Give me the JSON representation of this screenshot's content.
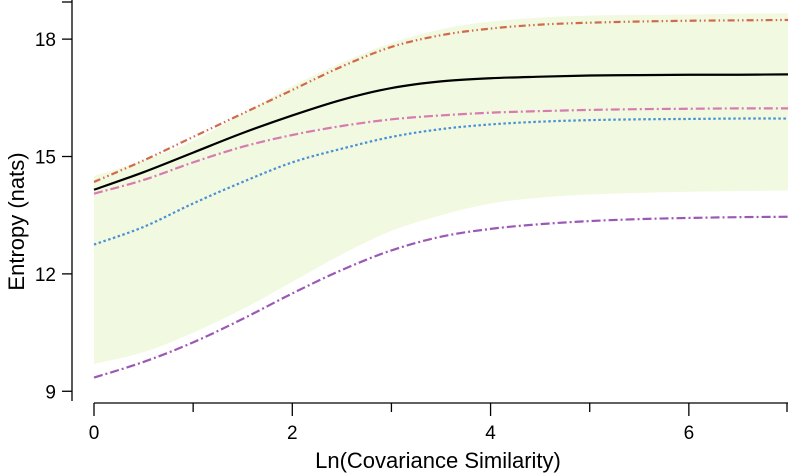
{
  "chart_data": {
    "type": "line",
    "title": "",
    "xlabel": "Ln(Covariance Similarity)",
    "ylabel": "Entropy (nats)",
    "xlim": [
      0,
      7
    ],
    "ylim": [
      8.7,
      19.0
    ],
    "x_ticks": [
      0,
      2,
      4,
      6
    ],
    "x_minor_ticks": [
      1,
      3,
      5,
      7
    ],
    "x_tick_labels": [
      "0",
      "2",
      "4",
      "6"
    ],
    "y_ticks": [
      9,
      12,
      15,
      18
    ],
    "y_tick_labels": [
      "9",
      "12",
      "15",
      "18"
    ],
    "grid": false,
    "legend": "none",
    "band": {
      "name": "shaded-range",
      "color": "#f1f9e0",
      "x": [
        0,
        0.5,
        1,
        1.5,
        2,
        2.5,
        3,
        3.5,
        4,
        4.5,
        5,
        5.5,
        6,
        6.5,
        7
      ],
      "upper": [
        14.5,
        14.9,
        15.4,
        16.1,
        16.8,
        17.4,
        17.9,
        18.25,
        18.45,
        18.55,
        18.6,
        18.62,
        18.63,
        18.65,
        18.66
      ],
      "lower": [
        9.7,
        10.0,
        10.5,
        11.1,
        11.8,
        12.5,
        13.1,
        13.5,
        13.8,
        13.95,
        14.03,
        14.07,
        14.1,
        14.12,
        14.13
      ]
    },
    "x": [
      0,
      0.5,
      1,
      1.5,
      2,
      2.5,
      3,
      3.5,
      4,
      4.5,
      5,
      5.5,
      6,
      6.5,
      7
    ],
    "series": [
      {
        "name": "orange-dash-dot-dot",
        "color": "#d2694a",
        "dash": "7 3 1.5 3 1.5 3",
        "values": [
          14.35,
          14.9,
          15.5,
          16.1,
          16.7,
          17.3,
          17.8,
          18.1,
          18.27,
          18.37,
          18.42,
          18.45,
          18.47,
          18.48,
          18.49
        ]
      },
      {
        "name": "black-solid",
        "color": "#000000",
        "dash": "",
        "values": [
          14.15,
          14.6,
          15.1,
          15.6,
          16.05,
          16.45,
          16.75,
          16.92,
          17.0,
          17.04,
          17.07,
          17.08,
          17.09,
          17.09,
          17.1
        ]
      },
      {
        "name": "pink-dash-dot",
        "color": "#d77bb0",
        "dash": "9 3 2 3",
        "values": [
          14.05,
          14.4,
          14.85,
          15.25,
          15.55,
          15.78,
          15.95,
          16.05,
          16.12,
          16.16,
          16.19,
          16.21,
          16.22,
          16.23,
          16.23
        ]
      },
      {
        "name": "blue-dotted",
        "color": "#4a90d6",
        "dash": "2.5 2.5",
        "values": [
          12.75,
          13.2,
          13.8,
          14.35,
          14.85,
          15.2,
          15.5,
          15.7,
          15.82,
          15.89,
          15.93,
          15.95,
          15.96,
          15.97,
          15.97
        ]
      },
      {
        "name": "purple-dash-dot",
        "color": "#9b59b6",
        "dash": "9 3 2 3",
        "values": [
          9.35,
          9.75,
          10.25,
          10.85,
          11.5,
          12.1,
          12.6,
          12.95,
          13.15,
          13.27,
          13.35,
          13.4,
          13.43,
          13.45,
          13.46
        ]
      }
    ]
  }
}
